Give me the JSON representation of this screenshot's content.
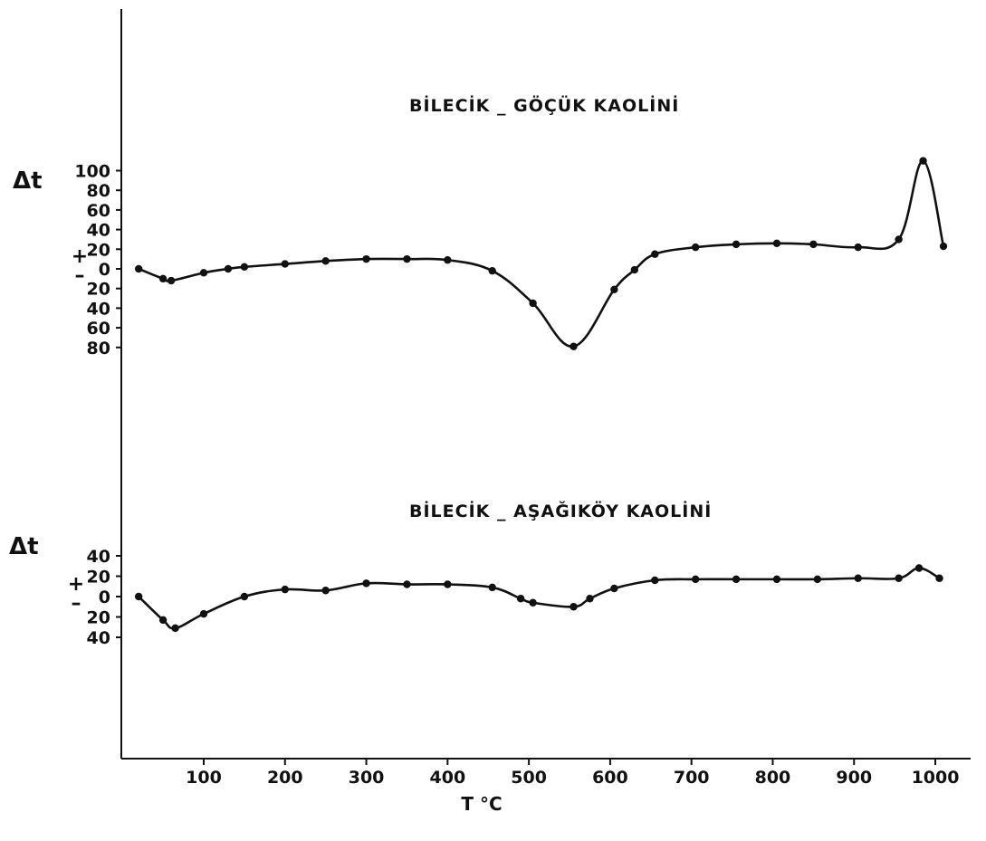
{
  "chart_data": [
    {
      "type": "line",
      "title": "BİLECİK _ GÖÇÜK KAOLİNİ",
      "ylabel": "Δt",
      "sign_label_plus": "+",
      "sign_label_minus": "–",
      "ylim": [
        -80,
        100
      ],
      "yticks": [
        {
          "value": 100,
          "label": "100"
        },
        {
          "value": 80,
          "label": "80"
        },
        {
          "value": 60,
          "label": "60"
        },
        {
          "value": 40,
          "label": "40"
        },
        {
          "value": 20,
          "label": "20"
        },
        {
          "value": 0,
          "label": "0"
        },
        {
          "value": -20,
          "label": "20"
        },
        {
          "value": -40,
          "label": "40"
        },
        {
          "value": -60,
          "label": "60"
        },
        {
          "value": -80,
          "label": "80"
        }
      ],
      "x": [
        20,
        50,
        60,
        100,
        130,
        150,
        200,
        250,
        300,
        350,
        400,
        455,
        505,
        555,
        605,
        630,
        655,
        705,
        755,
        805,
        850,
        905,
        955,
        985,
        1010
      ],
      "y": [
        0,
        -10,
        -12,
        -4,
        0,
        2,
        5,
        8,
        10,
        10,
        9,
        -2,
        -35,
        -79,
        -21,
        -1,
        15,
        22,
        25,
        26,
        25,
        22,
        30,
        110,
        23
      ]
    },
    {
      "type": "line",
      "title": "BİLECİK _ AŞAĞIKÖY KAOLİNİ",
      "ylabel": "Δt",
      "sign_label_plus": "+",
      "sign_label_minus": "–",
      "ylim": [
        -40,
        40
      ],
      "yticks": [
        {
          "value": 40,
          "label": "40"
        },
        {
          "value": 20,
          "label": "20"
        },
        {
          "value": 0,
          "label": "0"
        },
        {
          "value": -20,
          "label": "20"
        },
        {
          "value": -40,
          "label": "40"
        }
      ],
      "x": [
        20,
        50,
        65,
        100,
        150,
        200,
        250,
        300,
        350,
        400,
        455,
        490,
        505,
        555,
        575,
        605,
        655,
        705,
        755,
        805,
        855,
        905,
        955,
        980,
        1005
      ],
      "y": [
        0,
        -23,
        -31,
        -17,
        0,
        7,
        6,
        13,
        12,
        12,
        9,
        -2,
        -6,
        -10,
        -2,
        8,
        16,
        17,
        17,
        17,
        17,
        18,
        18,
        28,
        18
      ]
    }
  ],
  "x_axis": {
    "label": "T °C",
    "ticks": [
      {
        "value": 100,
        "label": "100"
      },
      {
        "value": 200,
        "label": "200"
      },
      {
        "value": 300,
        "label": "300"
      },
      {
        "value": 400,
        "label": "400"
      },
      {
        "value": 500,
        "label": "500"
      },
      {
        "value": 600,
        "label": "600"
      },
      {
        "value": 700,
        "label": "700"
      },
      {
        "value": 800,
        "label": "800"
      },
      {
        "value": 900,
        "label": "900"
      },
      {
        "value": 1000,
        "label": "1000"
      }
    ]
  }
}
